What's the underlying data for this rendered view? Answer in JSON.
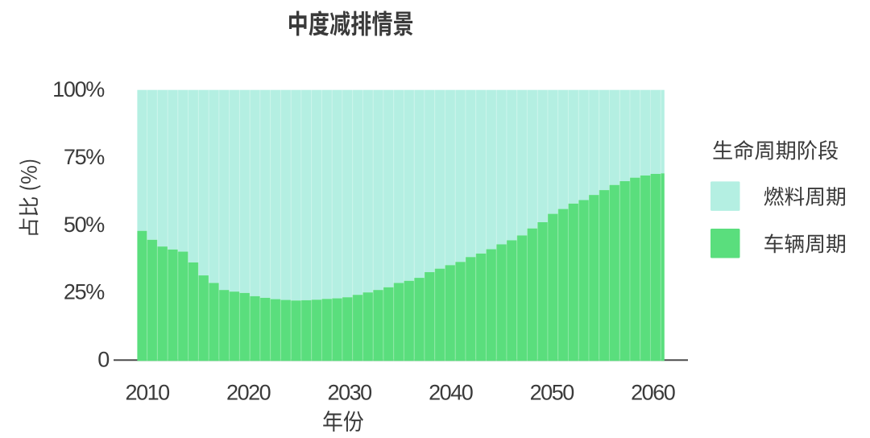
{
  "title": {
    "text": "中度减排情景"
  },
  "axes": {
    "x_title": "年份",
    "y_title": "占比 (%)",
    "y_tick_labels": [
      "100%",
      "75%",
      "50%",
      "25%",
      "0"
    ],
    "x_tick_labels": [
      "2010",
      "2020",
      "2030",
      "2040",
      "2050",
      "2060"
    ]
  },
  "legend": {
    "title": "生命周期阶段",
    "items": [
      {
        "id": "fuel",
        "label": "燃料周期",
        "color": "#b4efe2"
      },
      {
        "id": "vehicle",
        "label": "车辆周期",
        "color": "#5ade7d"
      }
    ]
  },
  "colors": {
    "fuel": "#b4efe2",
    "vehicle": "#5ade7d",
    "text": "#3a3a3a",
    "axis_line": "#4c4c4c",
    "background": "#ffffff"
  },
  "chart_data": {
    "type": "bar",
    "stacked": true,
    "percent": true,
    "title": "中度减排情景",
    "xlabel": "年份",
    "ylabel": "占比 (%)",
    "ylim": [
      0,
      100
    ],
    "grid": false,
    "legend_position": "right",
    "x": [
      2009,
      2010,
      2011,
      2012,
      2013,
      2014,
      2015,
      2016,
      2017,
      2018,
      2019,
      2020,
      2021,
      2022,
      2023,
      2024,
      2025,
      2026,
      2027,
      2028,
      2029,
      2030,
      2031,
      2032,
      2033,
      2034,
      2035,
      2036,
      2037,
      2038,
      2039,
      2040,
      2041,
      2042,
      2043,
      2044,
      2045,
      2046,
      2047,
      2048,
      2049,
      2050,
      2051,
      2052,
      2053,
      2054,
      2055,
      2056,
      2057,
      2058,
      2059,
      2060
    ],
    "xticks": [
      2010,
      2020,
      2030,
      2040,
      2050,
      2060
    ],
    "series": [
      {
        "name": "燃料周期",
        "color": "#b4efe2",
        "values": [
          52.2,
          55.5,
          58.0,
          59.1,
          59.9,
          63.9,
          68.7,
          71.5,
          74.1,
          74.7,
          75.2,
          76.4,
          77.0,
          77.5,
          77.8,
          78.0,
          77.9,
          77.7,
          77.4,
          77.2,
          76.8,
          75.9,
          75.0,
          74.1,
          73.1,
          71.5,
          70.7,
          69.6,
          67.5,
          66.2,
          64.9,
          63.7,
          61.9,
          60.6,
          59.0,
          57.2,
          55.7,
          53.9,
          51.3,
          49.0,
          45.9,
          44.1,
          42.1,
          40.8,
          38.9,
          37.1,
          35.2,
          33.8,
          32.5,
          31.7,
          31.1,
          30.9
        ]
      },
      {
        "name": "车辆周期",
        "color": "#5ade7d",
        "values": [
          47.8,
          44.5,
          42.0,
          40.9,
          40.1,
          36.1,
          31.3,
          28.5,
          25.9,
          25.3,
          24.8,
          23.6,
          23.0,
          22.5,
          22.2,
          22.0,
          22.1,
          22.3,
          22.6,
          22.8,
          23.2,
          24.1,
          25.0,
          25.9,
          26.9,
          28.5,
          29.3,
          30.4,
          32.5,
          33.8,
          35.1,
          36.3,
          38.1,
          39.4,
          41.0,
          42.8,
          44.3,
          46.1,
          48.7,
          51.0,
          54.1,
          55.9,
          57.9,
          59.2,
          61.1,
          62.9,
          64.8,
          66.2,
          67.5,
          68.3,
          68.9,
          69.1
        ]
      }
    ]
  }
}
